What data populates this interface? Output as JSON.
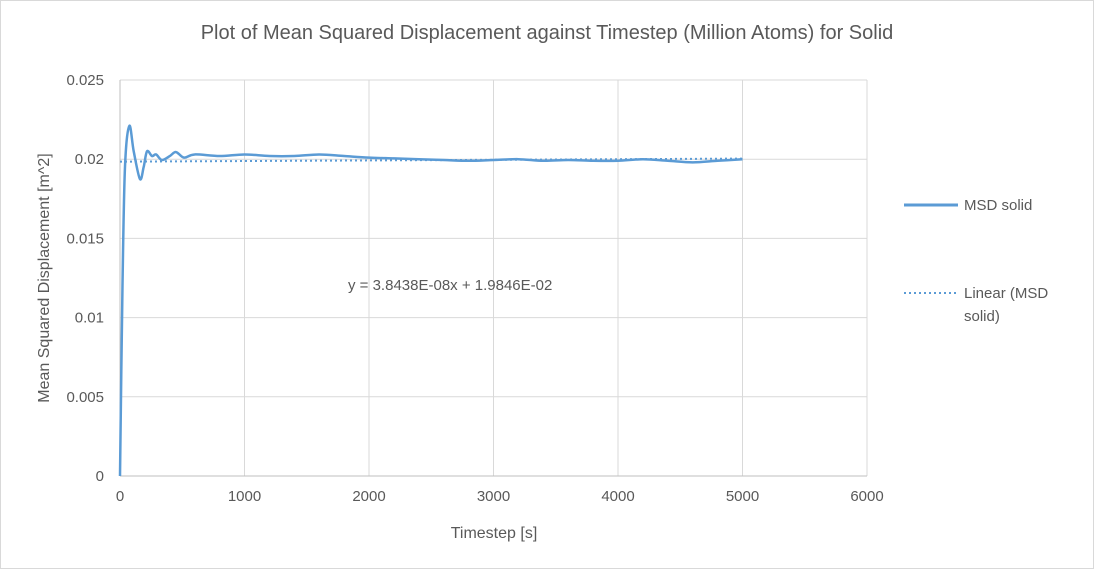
{
  "chart_data": {
    "type": "line",
    "title": "Plot of Mean Squared Displacement against Timestep (Million Atoms) for Solid",
    "xlabel": "Timestep [s]",
    "ylabel": "Mean Squared Displacement [m^2]",
    "xlim": [
      0,
      6000
    ],
    "ylim": [
      0,
      0.025
    ],
    "xticks": [
      "0",
      "1000",
      "2000",
      "3000",
      "4000",
      "5000",
      "6000"
    ],
    "yticks": [
      "0",
      "0.005",
      "0.01",
      "0.015",
      "0.02",
      "0.025"
    ],
    "grid": true,
    "legend_placement": "right",
    "series": [
      {
        "name": "MSD solid",
        "color": "#5b9bd5",
        "style": "solid",
        "x": [
          0,
          20,
          40,
          75,
          110,
          160,
          190,
          217,
          257,
          290,
          337,
          400,
          450,
          514,
          600,
          800,
          1000,
          1200,
          1400,
          1600,
          1800,
          2000,
          2200,
          2400,
          2600,
          2800,
          3000,
          3200,
          3400,
          3600,
          3800,
          4000,
          4200,
          4400,
          4600,
          4800,
          5000
        ],
        "y": [
          0,
          0.012,
          0.0195,
          0.0221,
          0.0205,
          0.01875,
          0.0195,
          0.0205,
          0.0202,
          0.0203,
          0.01995,
          0.0202,
          0.02045,
          0.0201,
          0.0203,
          0.0202,
          0.0203,
          0.0202,
          0.0202,
          0.0203,
          0.0202,
          0.0201,
          0.02005,
          0.02,
          0.01995,
          0.0199,
          0.01995,
          0.02,
          0.0199,
          0.01995,
          0.0199,
          0.0199,
          0.02,
          0.0199,
          0.0198,
          0.0199,
          0.02
        ]
      },
      {
        "name": "Linear (MSD solid)",
        "color": "#5b9bd5",
        "style": "dotted",
        "slope": 3.8438e-08,
        "intercept": 0.019846,
        "x_range": [
          0,
          5000
        ]
      }
    ],
    "annotations": [
      "y = 3.8438E-08x + 1.9846E-02"
    ],
    "legend": [
      "MSD solid",
      "Linear (MSD solid)"
    ]
  }
}
